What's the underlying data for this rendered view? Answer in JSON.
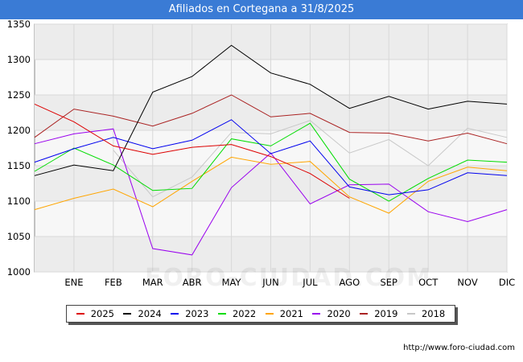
{
  "header": {
    "title": "Afiliados en Cortegana a 31/8/2025"
  },
  "footer": {
    "url": "http://www.foro-ciudad.com"
  },
  "watermark": "FORO-CIUDAD.COM",
  "chart_data": {
    "type": "line",
    "title": "Afiliados en Cortegana a 31/8/2025",
    "categories": [
      "DIC",
      "ENE",
      "FEB",
      "MAR",
      "ABR",
      "MAY",
      "JUN",
      "JUL",
      "AGO",
      "SEP",
      "OCT",
      "NOV",
      "DIC"
    ],
    "x_tick_labels": [
      "ENE",
      "FEB",
      "MAR",
      "ABR",
      "MAY",
      "JUN",
      "JUL",
      "AGO",
      "SEP",
      "OCT",
      "NOV",
      "DIC"
    ],
    "ylim": [
      1000,
      1350
    ],
    "y_ticks": [
      1000,
      1050,
      1100,
      1150,
      1200,
      1250,
      1300,
      1350
    ],
    "grid": true,
    "legend_position": "bottom",
    "series": [
      {
        "name": "2025",
        "color": "#dd0000",
        "values": [
          1237,
          1212,
          1178,
          1166,
          1176,
          1180,
          1163,
          1139,
          1104,
          null,
          null,
          null,
          null
        ]
      },
      {
        "name": "2024",
        "color": "#000000",
        "values": [
          1136,
          1151,
          1143,
          1254,
          1276,
          1320,
          1281,
          1265,
          1231,
          1248,
          1230,
          1241,
          1237
        ]
      },
      {
        "name": "2023",
        "color": "#0000ee",
        "values": [
          1155,
          1174,
          1190,
          1174,
          1186,
          1215,
          1167,
          1185,
          1120,
          1109,
          1116,
          1140,
          1136
        ]
      },
      {
        "name": "2022",
        "color": "#00dd00",
        "values": [
          1142,
          1175,
          1151,
          1115,
          1118,
          1188,
          1178,
          1210,
          1131,
          1100,
          1132,
          1158,
          1155
        ]
      },
      {
        "name": "2021",
        "color": "#ffa500",
        "values": [
          1088,
          1104,
          1117,
          1092,
          1128,
          1162,
          1152,
          1156,
          1106,
          1083,
          1128,
          1148,
          1143
        ]
      },
      {
        "name": "2020",
        "color": "#9900ee",
        "values": [
          1181,
          1195,
          1202,
          1033,
          1024,
          1119,
          1168,
          1096,
          1123,
          1124,
          1085,
          1071,
          1088
        ]
      },
      {
        "name": "2019",
        "color": "#aa2222",
        "values": [
          1190,
          1230,
          1220,
          1206,
          1224,
          1250,
          1219,
          1224,
          1197,
          1196,
          1185,
          1196,
          1181
        ]
      },
      {
        "name": "2018",
        "color": "#c8c8c8",
        "values": [
          null,
          null,
          1172,
          1106,
          1134,
          1197,
          1195,
          1214,
          1168,
          1187,
          1150,
          1203,
          1190
        ]
      }
    ]
  }
}
